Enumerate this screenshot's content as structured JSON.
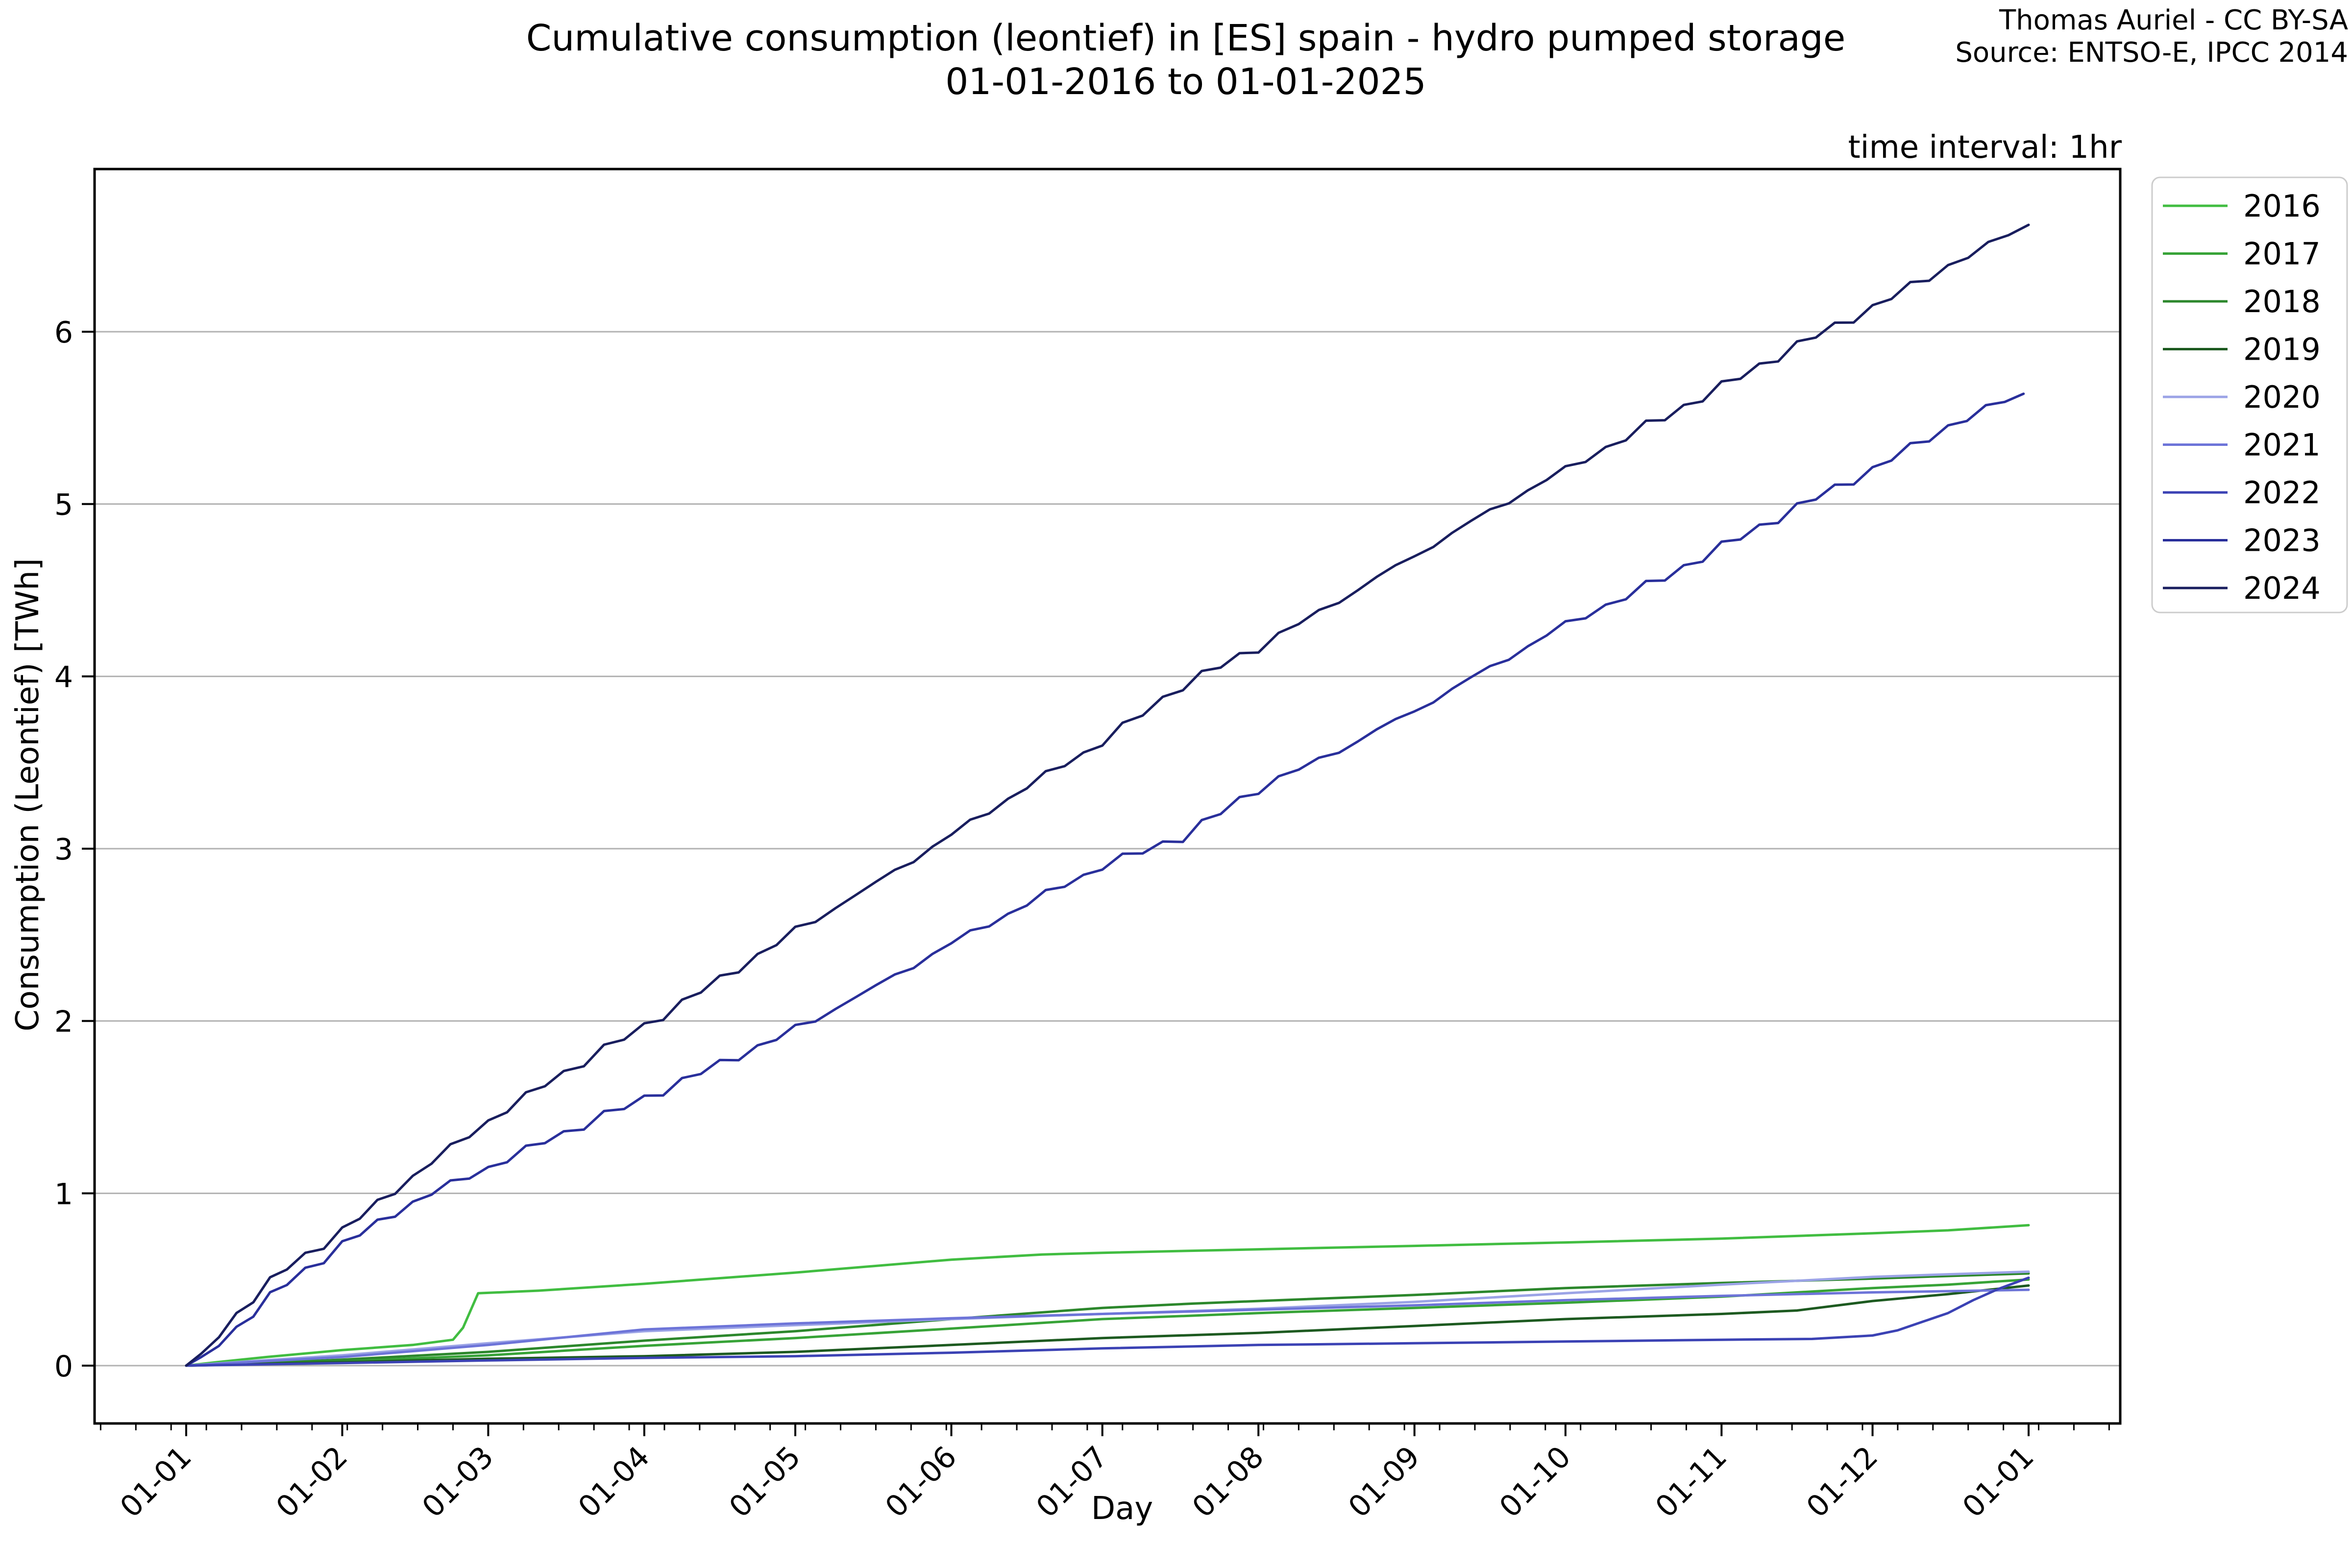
{
  "header": {
    "title": "Cumulative consumption (leontief) in [ES] spain - hydro pumped storage",
    "subtitle": "01-01-2016 to 01-01-2025",
    "credit_line1": "Thomas Auriel - CC BY-SA",
    "credit_line2": "Source: ENTSO-E, IPCC 2014",
    "time_interval_note": "time interval: 1hr"
  },
  "chart_data": {
    "type": "line",
    "title": "Cumulative consumption (leontief) in [ES] spain - hydro pumped storage 01-01-2016 to 01-01-2025",
    "xlabel": "Day",
    "ylabel": "Consumption (Leontief) [TWh]",
    "grid": "horizontal-gray",
    "legend_position": "right-outside",
    "axis_color": "#000000",
    "grid_color": "#b2b2b2",
    "ylim": [
      -0.34,
      6.96
    ],
    "xlim_days": [
      -18,
      384
    ],
    "y_ticks": [
      0,
      1,
      2,
      3,
      4,
      5,
      6
    ],
    "x_tick_days": [
      0,
      31,
      60,
      91,
      121,
      152,
      182,
      213,
      244,
      274,
      305,
      335,
      366
    ],
    "x_tick_labels": [
      "01-01",
      "01-02",
      "01-03",
      "01-04",
      "01-05",
      "01-06",
      "01-07",
      "01-08",
      "01-09",
      "01-10",
      "01-11",
      "01-12",
      "01-01"
    ],
    "x_minor_tick_step_days": 7,
    "x_minor_tick_offset_days": 4,
    "series": [
      {
        "name": "2016",
        "color": "#41bd41",
        "points": [
          [
            0,
            0
          ],
          [
            6,
            0.02
          ],
          [
            16,
            0.05
          ],
          [
            31,
            0.09
          ],
          [
            45,
            0.12
          ],
          [
            53,
            0.15
          ],
          [
            55,
            0.22
          ],
          [
            58,
            0.42
          ],
          [
            70,
            0.435
          ],
          [
            91,
            0.475
          ],
          [
            121,
            0.54
          ],
          [
            152,
            0.615
          ],
          [
            170,
            0.645
          ],
          [
            182,
            0.655
          ],
          [
            213,
            0.675
          ],
          [
            244,
            0.695
          ],
          [
            274,
            0.715
          ],
          [
            305,
            0.737
          ],
          [
            335,
            0.768
          ],
          [
            350,
            0.785
          ],
          [
            366,
            0.815
          ]
        ]
      },
      {
        "name": "2017",
        "color": "#37a337",
        "points": [
          [
            0,
            0
          ],
          [
            15,
            0.01
          ],
          [
            31,
            0.025
          ],
          [
            60,
            0.06
          ],
          [
            91,
            0.115
          ],
          [
            121,
            0.16
          ],
          [
            152,
            0.215
          ],
          [
            182,
            0.27
          ],
          [
            200,
            0.29
          ],
          [
            213,
            0.305
          ],
          [
            244,
            0.335
          ],
          [
            274,
            0.365
          ],
          [
            305,
            0.4
          ],
          [
            335,
            0.45
          ],
          [
            350,
            0.47
          ],
          [
            366,
            0.5
          ]
        ]
      },
      {
        "name": "2018",
        "color": "#2c872c",
        "points": [
          [
            0,
            0
          ],
          [
            15,
            0.015
          ],
          [
            31,
            0.035
          ],
          [
            60,
            0.08
          ],
          [
            91,
            0.145
          ],
          [
            121,
            0.2
          ],
          [
            152,
            0.27
          ],
          [
            182,
            0.335
          ],
          [
            200,
            0.36
          ],
          [
            213,
            0.375
          ],
          [
            244,
            0.41
          ],
          [
            274,
            0.45
          ],
          [
            305,
            0.48
          ],
          [
            335,
            0.505
          ],
          [
            350,
            0.52
          ],
          [
            366,
            0.535
          ]
        ]
      },
      {
        "name": "2019",
        "color": "#1d5a20",
        "points": [
          [
            0,
            0
          ],
          [
            31,
            0.02
          ],
          [
            60,
            0.04
          ],
          [
            91,
            0.055
          ],
          [
            121,
            0.08
          ],
          [
            152,
            0.12
          ],
          [
            182,
            0.16
          ],
          [
            213,
            0.19
          ],
          [
            244,
            0.23
          ],
          [
            274,
            0.27
          ],
          [
            305,
            0.3
          ],
          [
            320,
            0.32
          ],
          [
            335,
            0.375
          ],
          [
            350,
            0.415
          ],
          [
            366,
            0.465
          ]
        ]
      },
      {
        "name": "2020",
        "color": "#9ba3e6",
        "points": [
          [
            0,
            0
          ],
          [
            15,
            0.03
          ],
          [
            31,
            0.06
          ],
          [
            60,
            0.13
          ],
          [
            91,
            0.2
          ],
          [
            121,
            0.235
          ],
          [
            152,
            0.27
          ],
          [
            182,
            0.3
          ],
          [
            213,
            0.33
          ],
          [
            244,
            0.37
          ],
          [
            274,
            0.42
          ],
          [
            305,
            0.47
          ],
          [
            335,
            0.515
          ],
          [
            350,
            0.53
          ],
          [
            366,
            0.545
          ]
        ]
      },
      {
        "name": "2021",
        "color": "#6d74d8",
        "points": [
          [
            0,
            0
          ],
          [
            15,
            0.025
          ],
          [
            31,
            0.05
          ],
          [
            60,
            0.12
          ],
          [
            91,
            0.21
          ],
          [
            121,
            0.245
          ],
          [
            152,
            0.275
          ],
          [
            182,
            0.3
          ],
          [
            213,
            0.325
          ],
          [
            244,
            0.35
          ],
          [
            274,
            0.38
          ],
          [
            305,
            0.405
          ],
          [
            335,
            0.425
          ],
          [
            366,
            0.44
          ]
        ]
      },
      {
        "name": "2022",
        "color": "#3b42b4",
        "points": [
          [
            0,
            0
          ],
          [
            31,
            0.015
          ],
          [
            60,
            0.03
          ],
          [
            91,
            0.045
          ],
          [
            121,
            0.055
          ],
          [
            152,
            0.075
          ],
          [
            182,
            0.1
          ],
          [
            213,
            0.12
          ],
          [
            244,
            0.13
          ],
          [
            274,
            0.14
          ],
          [
            305,
            0.15
          ],
          [
            323,
            0.155
          ],
          [
            335,
            0.175
          ],
          [
            340,
            0.205
          ],
          [
            345,
            0.255
          ],
          [
            350,
            0.305
          ],
          [
            355,
            0.38
          ],
          [
            360,
            0.445
          ],
          [
            366,
            0.51
          ]
        ]
      },
      {
        "name": "2023",
        "color": "#292f9b",
        "points": [
          [
            0,
            0
          ],
          [
            3,
            0.05
          ],
          [
            10,
            0.22
          ],
          [
            20,
            0.48
          ],
          [
            31,
            0.7
          ],
          [
            45,
            0.95
          ],
          [
            60,
            1.15
          ],
          [
            75,
            1.35
          ],
          [
            91,
            1.55
          ],
          [
            106,
            1.75
          ],
          [
            121,
            1.95
          ],
          [
            137,
            2.2
          ],
          [
            152,
            2.45
          ],
          [
            167,
            2.68
          ],
          [
            182,
            2.9
          ],
          [
            198,
            3.07
          ],
          [
            213,
            3.35
          ],
          [
            229,
            3.57
          ],
          [
            244,
            3.8
          ],
          [
            259,
            4.05
          ],
          [
            274,
            4.3
          ],
          [
            290,
            4.52
          ],
          [
            305,
            4.75
          ],
          [
            320,
            4.98
          ],
          [
            335,
            5.2
          ],
          [
            350,
            5.45
          ],
          [
            365,
            5.64
          ]
        ]
      },
      {
        "name": "2024",
        "color": "#191e5e",
        "points": [
          [
            0,
            0
          ],
          [
            3,
            0.07
          ],
          [
            10,
            0.3
          ],
          [
            20,
            0.57
          ],
          [
            31,
            0.78
          ],
          [
            45,
            1.1
          ],
          [
            60,
            1.42
          ],
          [
            75,
            1.7
          ],
          [
            91,
            1.97
          ],
          [
            106,
            2.24
          ],
          [
            121,
            2.52
          ],
          [
            137,
            2.8
          ],
          [
            152,
            3.08
          ],
          [
            167,
            3.36
          ],
          [
            182,
            3.62
          ],
          [
            198,
            3.95
          ],
          [
            213,
            4.17
          ],
          [
            229,
            4.44
          ],
          [
            244,
            4.7
          ],
          [
            259,
            4.96
          ],
          [
            274,
            5.2
          ],
          [
            290,
            5.45
          ],
          [
            305,
            5.68
          ],
          [
            320,
            5.92
          ],
          [
            335,
            6.14
          ],
          [
            350,
            6.38
          ],
          [
            366,
            6.62
          ]
        ]
      }
    ],
    "legend_entries": [
      "2016",
      "2017",
      "2018",
      "2019",
      "2020",
      "2021",
      "2022",
      "2023",
      "2024"
    ]
  }
}
